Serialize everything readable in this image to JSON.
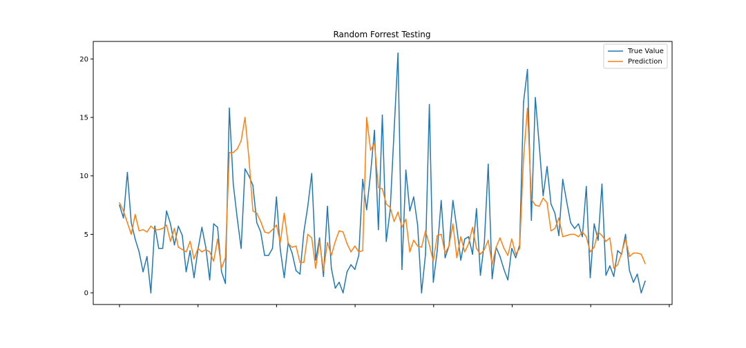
{
  "chart_data": {
    "type": "line",
    "title": "Random Forrest Testing",
    "xlabel": "",
    "ylabel": "",
    "ylim": [
      -1,
      21.5
    ],
    "y_ticks": [
      0,
      5,
      10,
      15,
      20
    ],
    "x_tick_count": 8,
    "grid": false,
    "legend_position": "top-right",
    "series": [
      {
        "name": "True Value",
        "color": "#1f77b4",
        "values": [
          7.5,
          6.4,
          10.3,
          6.0,
          4.6,
          3.5,
          1.8,
          3.1,
          0.0,
          5.7,
          3.8,
          3.8,
          7.0,
          5.9,
          4.1,
          5.7,
          4.9,
          1.8,
          3.6,
          1.3,
          3.7,
          5.6,
          3.9,
          1.1,
          5.9,
          5.6,
          1.8,
          0.8,
          15.8,
          9.3,
          6.4,
          3.8,
          10.6,
          10.0,
          9.2,
          6.0,
          5.2,
          3.2,
          3.2,
          3.8,
          8.2,
          3.7,
          1.3,
          4.3,
          3.4,
          1.9,
          1.6,
          5.2,
          7.4,
          10.2,
          2.8,
          4.7,
          1.4,
          7.4,
          2.1,
          0.4,
          0.9,
          0.0,
          1.8,
          2.4,
          2.0,
          3.2,
          9.7,
          7.1,
          10.2,
          13.9,
          5.4,
          15.2,
          4.4,
          7.1,
          13.8,
          20.5,
          2.0,
          10.5,
          7.0,
          8.2,
          5.8,
          0.0,
          3.3,
          16.1,
          0.9,
          3.6,
          7.9,
          3.0,
          4.0,
          7.9,
          5.5,
          2.8,
          4.6,
          4.8,
          3.3,
          7.2,
          1.5,
          4.3,
          11.0,
          1.2,
          3.9,
          3.1,
          2.0,
          1.1,
          3.8,
          3.0,
          4.1,
          16.3,
          19.1,
          6.2,
          16.7,
          12.6,
          8.3,
          10.8,
          7.6,
          6.8,
          4.9,
          9.7,
          7.8,
          6.0,
          5.5,
          5.9,
          4.8,
          9.1,
          1.3,
          5.9,
          4.5,
          9.3,
          1.5,
          2.3,
          1.4,
          3.6,
          3.3,
          5.0,
          1.9,
          0.9,
          1.6,
          0.0,
          1.0
        ]
      },
      {
        "name": "Prediction",
        "color": "#ff7f0e",
        "values": [
          7.7,
          7.0,
          6.0,
          5.0,
          6.7,
          5.3,
          5.4,
          5.2,
          5.7,
          5.4,
          5.4,
          5.5,
          5.8,
          4.4,
          5.5,
          3.9,
          3.7,
          3.5,
          4.4,
          2.9,
          3.8,
          3.5,
          3.7,
          3.5,
          2.7,
          4.6,
          2.1,
          3.0,
          12.0,
          12.0,
          12.3,
          13.0,
          15.0,
          11.5,
          7.0,
          6.8,
          6.1,
          5.2,
          5.1,
          5.4,
          5.8,
          4.3,
          6.8,
          4.2,
          3.9,
          4.0,
          2.6,
          2.6,
          5.0,
          4.7,
          2.1,
          4.4,
          1.9,
          4.3,
          3.2,
          4.4,
          5.3,
          5.2,
          4.2,
          3.5,
          4.0,
          3.5,
          3.6,
          15.0,
          12.2,
          12.8,
          9.0,
          8.9,
          7.6,
          7.3,
          6.1,
          6.9,
          5.6,
          6.3,
          3.5,
          4.5,
          4.0,
          3.9,
          5.3,
          4.1,
          2.7,
          4.9,
          5.0,
          3.4,
          4.0,
          5.9,
          3.0,
          4.8,
          3.5,
          4.2,
          5.6,
          3.8,
          3.3,
          3.7,
          4.5,
          2.4,
          3.9,
          4.7,
          3.8,
          3.2,
          4.6,
          3.3,
          3.8,
          11.5,
          15.8,
          8.0,
          7.5,
          7.4,
          8.1,
          7.7,
          5.3,
          5.5,
          6.4,
          4.8,
          4.9,
          5.0,
          5.0,
          4.8,
          5.2,
          4.8,
          3.5,
          3.9,
          5.2,
          4.9,
          4.4,
          4.7,
          2.1,
          2.4,
          3.4,
          4.6,
          3.1,
          3.4,
          3.4,
          3.3,
          2.5
        ]
      }
    ]
  }
}
